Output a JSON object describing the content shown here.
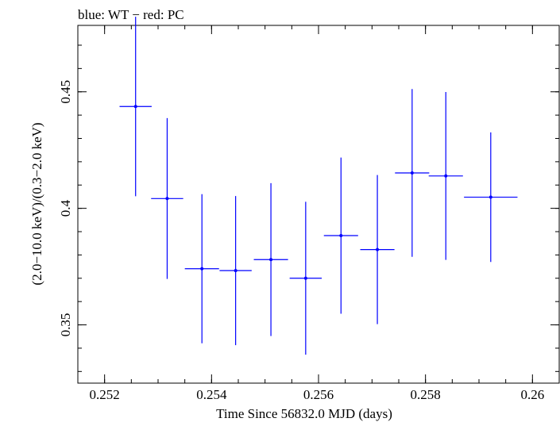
{
  "chart_data": {
    "type": "scatter",
    "title": "blue: WT − red: PC",
    "xlabel": "Time Since 56832.0 MJD (days)",
    "ylabel": "(2.0−10.0 keV)/(0.3−2.0 keV)",
    "xlim": [
      0.2515,
      0.2605
    ],
    "ylim": [
      0.325,
      0.4785
    ],
    "xticks": [
      {
        "value": 0.252,
        "label": "0.252"
      },
      {
        "value": 0.254,
        "label": "0.254"
      },
      {
        "value": 0.256,
        "label": "0.256"
      },
      {
        "value": 0.258,
        "label": "0.258"
      },
      {
        "value": 0.26,
        "label": "0.26"
      }
    ],
    "yticks": [
      {
        "value": 0.35,
        "label": "0.35"
      },
      {
        "value": 0.4,
        "label": "0.4"
      },
      {
        "value": 0.45,
        "label": "0.45"
      }
    ],
    "x_minor_step": 0.0005,
    "y_minor_step": 0.01,
    "series": [
      {
        "name": "WT",
        "color": "#0000ff",
        "points": [
          {
            "x": 0.25258,
            "y": 0.4437,
            "xerr": 0.0003,
            "yerr": 0.0385
          },
          {
            "x": 0.25317,
            "y": 0.4042,
            "xerr": 0.0003,
            "yerr": 0.0345
          },
          {
            "x": 0.25382,
            "y": 0.3741,
            "xerr": 0.00032,
            "yerr": 0.032
          },
          {
            "x": 0.25445,
            "y": 0.3733,
            "xerr": 0.0003,
            "yerr": 0.032
          },
          {
            "x": 0.25511,
            "y": 0.378,
            "xerr": 0.00032,
            "yerr": 0.0328
          },
          {
            "x": 0.25576,
            "y": 0.37,
            "xerr": 0.0003,
            "yerr": 0.0328
          },
          {
            "x": 0.25642,
            "y": 0.3883,
            "xerr": 0.00032,
            "yerr": 0.0335
          },
          {
            "x": 0.2571,
            "y": 0.3823,
            "xerr": 0.00032,
            "yerr": 0.032
          },
          {
            "x": 0.25775,
            "y": 0.4152,
            "xerr": 0.00032,
            "yerr": 0.036
          },
          {
            "x": 0.25838,
            "y": 0.4139,
            "xerr": 0.00032,
            "yerr": 0.036
          },
          {
            "x": 0.25922,
            "y": 0.4048,
            "xerr": 0.0005,
            "yerr": 0.0278
          }
        ]
      }
    ]
  }
}
